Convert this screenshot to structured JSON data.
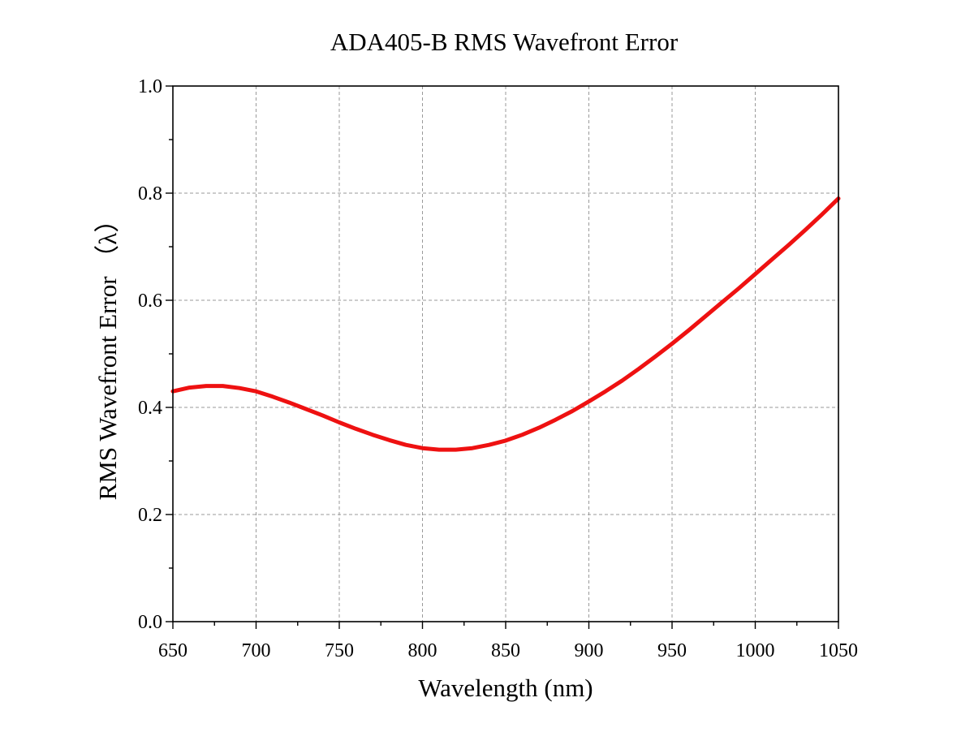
{
  "chart_data": {
    "type": "line",
    "title": "ADA405-B RMS Wavefront Error",
    "xlabel": "Wavelength (nm)",
    "ylabel": "RMS Wavefront Error （λ）",
    "xlim": [
      650,
      1050
    ],
    "ylim": [
      0.0,
      1.0
    ],
    "x_ticks": [
      "650",
      "700",
      "750",
      "800",
      "850",
      "900",
      "950",
      "1000",
      "1050"
    ],
    "y_ticks": [
      "0.0",
      "0.2",
      "0.4",
      "0.6",
      "0.8",
      "1.0"
    ],
    "grid": true,
    "series": [
      {
        "color": "#ee1111",
        "x": [
          650,
          660,
          670,
          680,
          690,
          700,
          710,
          720,
          730,
          740,
          750,
          760,
          770,
          780,
          790,
          800,
          810,
          820,
          830,
          840,
          850,
          860,
          870,
          880,
          890,
          900,
          910,
          920,
          930,
          940,
          950,
          960,
          970,
          980,
          990,
          1000,
          1010,
          1020,
          1030,
          1040,
          1050
        ],
        "y": [
          0.43,
          0.437,
          0.44,
          0.44,
          0.436,
          0.43,
          0.42,
          0.409,
          0.397,
          0.385,
          0.372,
          0.36,
          0.349,
          0.339,
          0.33,
          0.324,
          0.321,
          0.321,
          0.324,
          0.33,
          0.338,
          0.349,
          0.362,
          0.377,
          0.393,
          0.411,
          0.43,
          0.45,
          0.472,
          0.495,
          0.519,
          0.544,
          0.57,
          0.596,
          0.622,
          0.649,
          0.676,
          0.703,
          0.731,
          0.76,
          0.79
        ]
      }
    ]
  }
}
